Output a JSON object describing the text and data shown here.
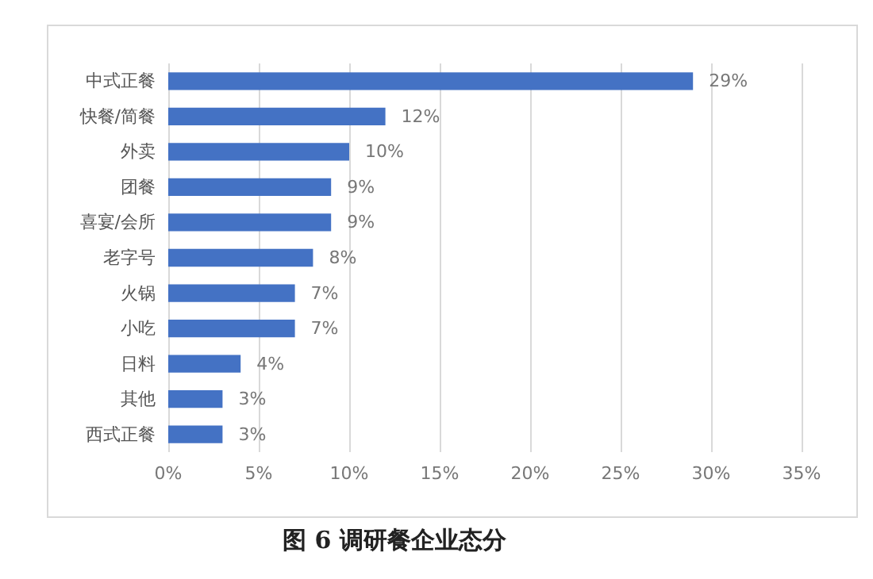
{
  "chart_data": {
    "type": "bar",
    "orientation": "horizontal",
    "title": "图 6 调研餐企业态分",
    "categories": [
      "中式正餐",
      "快餐/简餐",
      "外卖",
      "团餐",
      "喜宴/会所",
      "老字号",
      "火锅",
      "小吃",
      "日料",
      "其他",
      "西式正餐"
    ],
    "values": [
      29,
      12,
      10,
      9,
      9,
      8,
      7,
      7,
      4,
      3,
      3
    ],
    "value_labels": [
      "29%",
      "12%",
      "10%",
      "9%",
      "9%",
      "8%",
      "7%",
      "7%",
      "4%",
      "3%",
      "3%"
    ],
    "color": "#4472c4",
    "xlim": [
      0,
      35
    ],
    "xticks": [
      {
        "value": 0,
        "label": "0%"
      },
      {
        "value": 5,
        "label": "5%"
      },
      {
        "value": 10,
        "label": "10%"
      },
      {
        "value": 15,
        "label": "15%"
      },
      {
        "value": 20,
        "label": "20%"
      },
      {
        "value": 25,
        "label": "25%"
      },
      {
        "value": 30,
        "label": "30%"
      },
      {
        "value": 35,
        "label": "35%"
      }
    ],
    "grid": "x"
  }
}
